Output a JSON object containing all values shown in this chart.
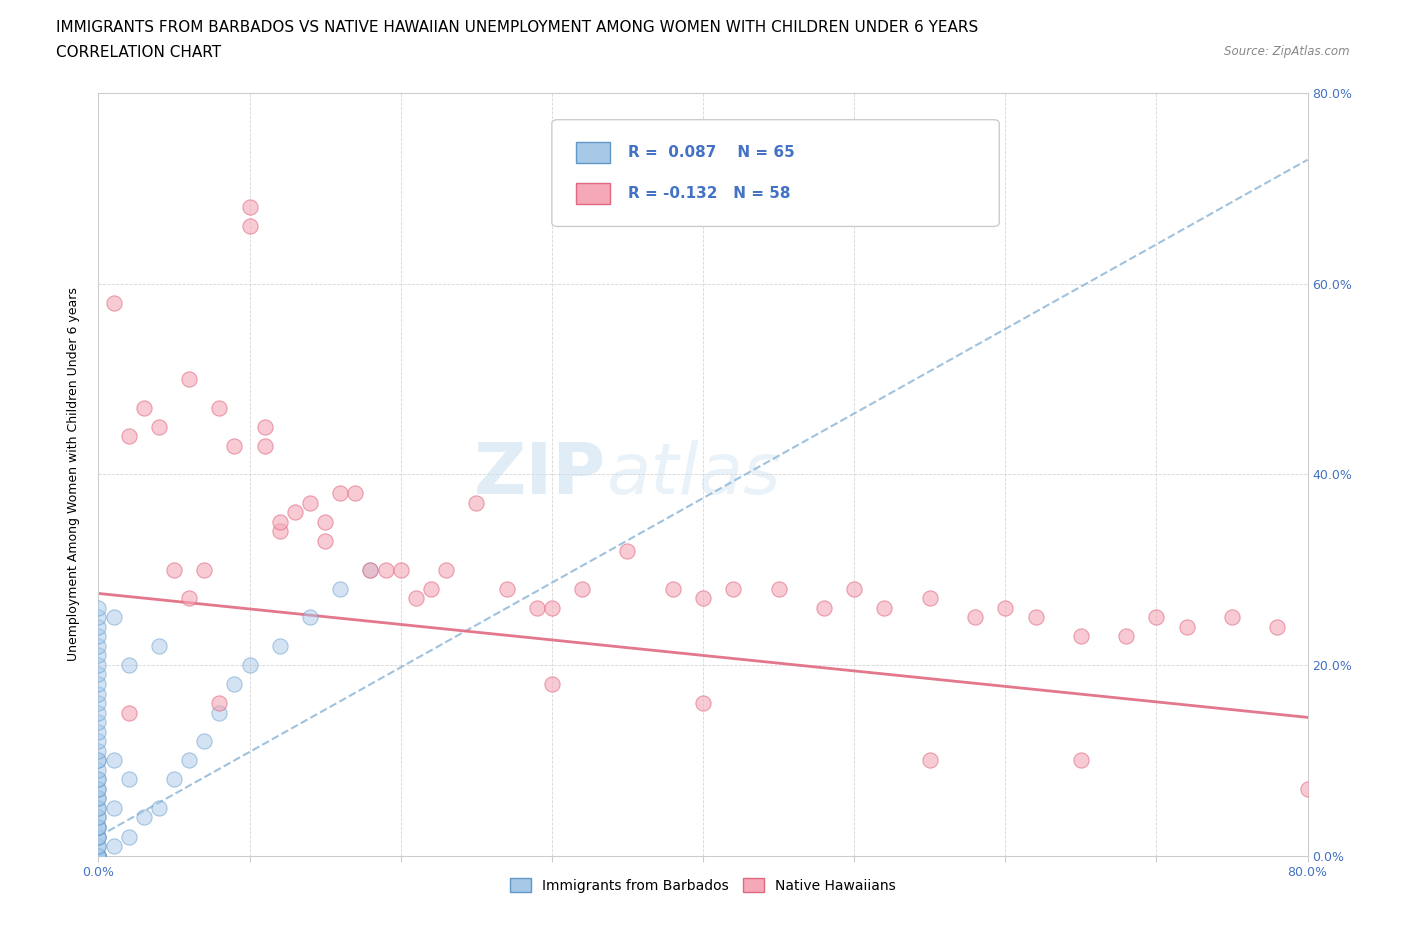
{
  "title": "IMMIGRANTS FROM BARBADOS VS NATIVE HAWAIIAN UNEMPLOYMENT AMONG WOMEN WITH CHILDREN UNDER 6 YEARS",
  "subtitle": "CORRELATION CHART",
  "source": "Source: ZipAtlas.com",
  "ylabel": "Unemployment Among Women with Children Under 6 years",
  "xlim": [
    0,
    0.8
  ],
  "ylim": [
    0,
    0.8
  ],
  "R_blue": 0.087,
  "N_blue": 65,
  "R_pink": -0.132,
  "N_pink": 58,
  "blue_color": "#a8c8e8",
  "pink_color": "#f4a8b8",
  "blue_edge_color": "#6098c8",
  "pink_edge_color": "#e06880",
  "trend_blue_color": "#90b8d8",
  "trend_pink_color": "#e06880",
  "legend_label_blue": "Immigrants from Barbados",
  "legend_label_pink": "Native Hawaiians",
  "watermark_zip": "ZIP",
  "watermark_atlas": "atlas",
  "blue_scatter_x": [
    0.0,
    0.0,
    0.0,
    0.0,
    0.0,
    0.0,
    0.0,
    0.0,
    0.0,
    0.0,
    0.0,
    0.0,
    0.0,
    0.0,
    0.0,
    0.0,
    0.0,
    0.0,
    0.0,
    0.0,
    0.0,
    0.0,
    0.0,
    0.0,
    0.0,
    0.0,
    0.0,
    0.0,
    0.0,
    0.0,
    0.0,
    0.0,
    0.0,
    0.0,
    0.0,
    0.0,
    0.0,
    0.0,
    0.0,
    0.0,
    0.0,
    0.0,
    0.0,
    0.0,
    0.0,
    0.01,
    0.01,
    0.01,
    0.01,
    0.02,
    0.02,
    0.02,
    0.03,
    0.04,
    0.04,
    0.05,
    0.06,
    0.07,
    0.08,
    0.09,
    0.1,
    0.12,
    0.14,
    0.16,
    0.18
  ],
  "blue_scatter_y": [
    0.0,
    0.0,
    0.0,
    0.0,
    0.0,
    0.0,
    0.0,
    0.0,
    0.01,
    0.01,
    0.02,
    0.02,
    0.02,
    0.03,
    0.03,
    0.03,
    0.04,
    0.04,
    0.05,
    0.05,
    0.06,
    0.06,
    0.07,
    0.07,
    0.08,
    0.08,
    0.09,
    0.1,
    0.1,
    0.11,
    0.12,
    0.13,
    0.14,
    0.15,
    0.16,
    0.17,
    0.18,
    0.19,
    0.2,
    0.21,
    0.22,
    0.23,
    0.24,
    0.25,
    0.26,
    0.01,
    0.05,
    0.1,
    0.25,
    0.02,
    0.08,
    0.2,
    0.04,
    0.05,
    0.22,
    0.08,
    0.1,
    0.12,
    0.15,
    0.18,
    0.2,
    0.22,
    0.25,
    0.28,
    0.3
  ],
  "pink_scatter_x": [
    0.01,
    0.02,
    0.03,
    0.04,
    0.05,
    0.06,
    0.06,
    0.07,
    0.08,
    0.09,
    0.1,
    0.1,
    0.11,
    0.11,
    0.12,
    0.12,
    0.13,
    0.14,
    0.15,
    0.15,
    0.16,
    0.17,
    0.18,
    0.19,
    0.2,
    0.21,
    0.22,
    0.23,
    0.25,
    0.27,
    0.29,
    0.3,
    0.32,
    0.35,
    0.38,
    0.4,
    0.42,
    0.45,
    0.48,
    0.5,
    0.52,
    0.55,
    0.58,
    0.6,
    0.62,
    0.65,
    0.68,
    0.7,
    0.72,
    0.75,
    0.78,
    0.8,
    0.02,
    0.08,
    0.3,
    0.4,
    0.55,
    0.65
  ],
  "pink_scatter_y": [
    0.58,
    0.44,
    0.47,
    0.45,
    0.3,
    0.5,
    0.27,
    0.3,
    0.47,
    0.43,
    0.66,
    0.68,
    0.43,
    0.45,
    0.34,
    0.35,
    0.36,
    0.37,
    0.35,
    0.33,
    0.38,
    0.38,
    0.3,
    0.3,
    0.3,
    0.27,
    0.28,
    0.3,
    0.37,
    0.28,
    0.26,
    0.26,
    0.28,
    0.32,
    0.28,
    0.27,
    0.28,
    0.28,
    0.26,
    0.28,
    0.26,
    0.27,
    0.25,
    0.26,
    0.25,
    0.23,
    0.23,
    0.25,
    0.24,
    0.25,
    0.24,
    0.07,
    0.15,
    0.16,
    0.18,
    0.16,
    0.1,
    0.1
  ],
  "title_fontsize": 11,
  "subtitle_fontsize": 11,
  "tick_fontsize": 9,
  "axis_label_fontsize": 9
}
